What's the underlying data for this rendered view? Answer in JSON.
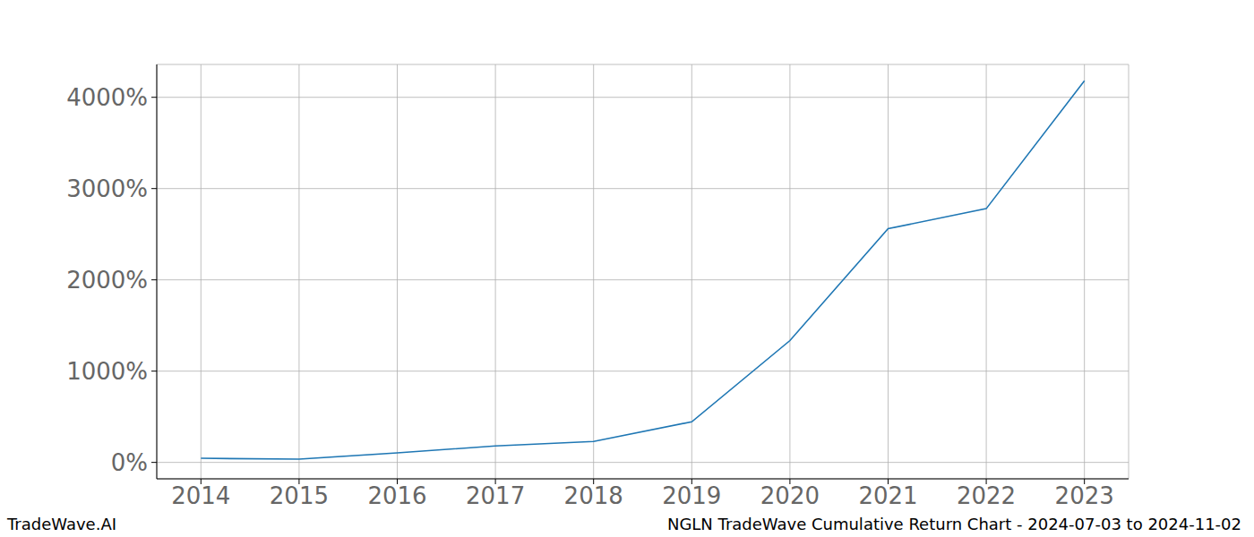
{
  "chart_data": {
    "type": "line",
    "title": "NGLN TradeWave Cumulative Return Chart - 2024-07-03 to 2024-11-02",
    "annotations": [
      "TradeWave.AI"
    ],
    "x": [
      2014,
      2015,
      2016,
      2017,
      2018,
      2019,
      2020,
      2021,
      2022,
      2023
    ],
    "values": [
      45,
      35,
      105,
      180,
      230,
      445,
      1335,
      2560,
      2780,
      4180
    ],
    "color": "#1f77b4",
    "xlim": [
      2013.55,
      2023.45
    ],
    "xticks": [
      2014,
      2015,
      2016,
      2017,
      2018,
      2019,
      2020,
      2021,
      2022,
      2023
    ],
    "ylim": [
      -180,
      4360
    ],
    "yticks": [
      {
        "value": 0,
        "label": "0%"
      },
      {
        "value": 1000,
        "label": "1000%"
      },
      {
        "value": 2000,
        "label": "2000%"
      },
      {
        "value": 3000,
        "label": "3000%"
      },
      {
        "value": 4000,
        "label": "4000%"
      }
    ],
    "grid": true
  }
}
